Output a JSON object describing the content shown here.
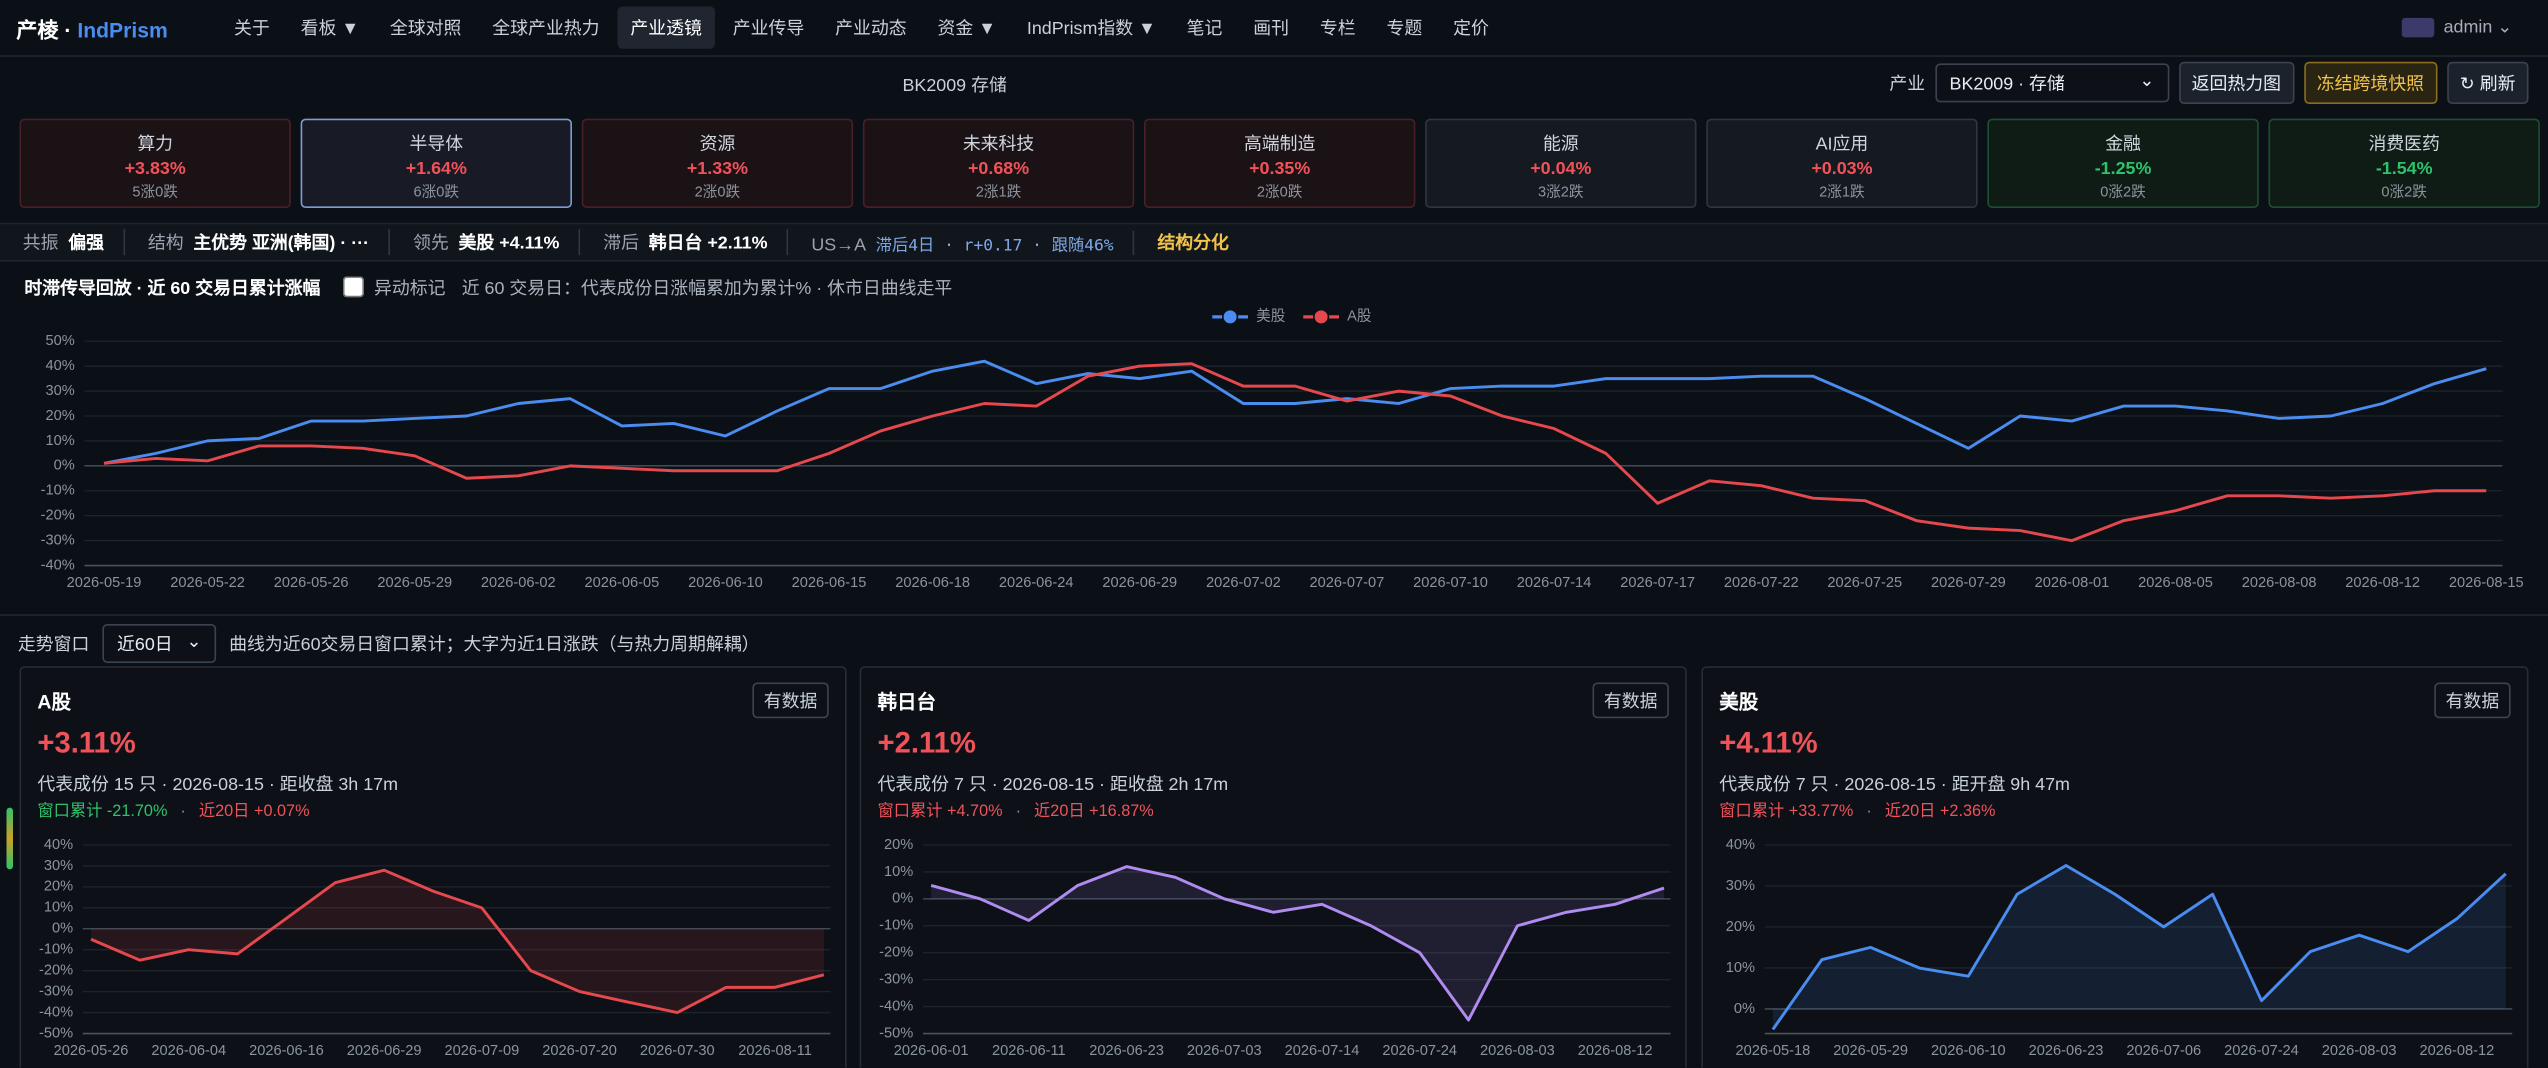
{
  "nav": {
    "brand": "产棱",
    "brand_sep": "·",
    "brand_en": "IndPrism",
    "items": [
      "关于",
      "看板 ▼",
      "全球对照",
      "全球产业热力",
      "产业透镜",
      "产业传导",
      "产业动态",
      "资金 ▼",
      "IndPrism指数 ▼",
      "笔记",
      "画刊",
      "专栏",
      "专题",
      "定价"
    ],
    "user": "admin"
  },
  "header": {
    "title": "BK2009 存储",
    "industry_label": "产业",
    "industry_select": "BK2009 · 存储",
    "buttons": [
      "返回热力图",
      "冻结跨境快照",
      "↻ 刷新"
    ]
  },
  "sectors": [
    {
      "name": "算力",
      "change": "+3.83%",
      "counts": "5涨0跌"
    },
    {
      "name": "半导体",
      "change": "+1.64%",
      "counts": "6涨0跌"
    },
    {
      "name": "资源",
      "change": "+1.33%",
      "counts": "2涨0跌"
    },
    {
      "name": "未来科技",
      "change": "+0.68%",
      "counts": "2涨1跌"
    },
    {
      "name": "高端制造",
      "change": "+0.35%",
      "counts": "2涨0跌"
    },
    {
      "name": "能源",
      "change": "+0.04%",
      "counts": "3涨2跌"
    },
    {
      "name": "AI应用",
      "change": "+0.03%",
      "counts": "2涨1跌"
    },
    {
      "name": "金融",
      "change": "-1.25%",
      "counts": "0涨2跌"
    },
    {
      "name": "消费医药",
      "change": "-1.54%",
      "counts": "0涨2跌"
    }
  ],
  "status": {
    "items": [
      {
        "label": "共振",
        "value": "偏强"
      },
      {
        "label": "结构",
        "value": "主优势 亚洲(韩国) · ···"
      },
      {
        "label": "领先",
        "value": "美股 +4.11%"
      },
      {
        "label": "滞后",
        "value": "韩日台 +2.11%"
      },
      {
        "label": "US→A",
        "value": "滞后4日 · r+0.17 · 跟随46%"
      }
    ],
    "tag": "结构分化"
  },
  "replay": {
    "toggle": "异动标记",
    "note": "近 60 交易日：代表成份日涨幅累加为累计% · 休市日曲线走平"
  },
  "window": {
    "label": "走势窗口",
    "select": "近60日",
    "note": "曲线为近60交易日窗口累计；大字为近1日涨跌（与热力周期解耦）"
  },
  "panels": [
    {
      "title": "A股",
      "badge": "有数据",
      "change": "+3.11%",
      "info": "代表成份 15 只 · 2026-08-15 · 距收盘 3h 17m",
      "window_label": "窗口累计",
      "window_value": "-21.70%",
      "recent_label": "近20日",
      "recent_value": "+0.07%"
    },
    {
      "title": "韩日台",
      "badge": "有数据",
      "change": "+2.11%",
      "info": "代表成份 7 只 · 2026-08-15 · 距收盘 2h 17m",
      "window_label": "窗口累计",
      "window_value": "+4.70%",
      "recent_label": "近20日",
      "recent_value": "+16.87%"
    },
    {
      "title": "美股",
      "badge": "有数据",
      "change": "+4.11%",
      "info": "代表成份 7 只 · 2026-08-15 · 距开盘 9h 47m",
      "window_label": "窗口累计",
      "window_value": "+33.77%",
      "recent_label": "近20日",
      "recent_value": "+2.36%"
    }
  ],
  "chart_data": [
    {
      "type": "line",
      "title": "时滞传导回放 · 近 60 交易日累计涨幅",
      "legend": "top",
      "grid": true,
      "categories": [
        "2026-05-19",
        null,
        "2026-05-22",
        null,
        "2026-05-26",
        null,
        "2026-05-29",
        null,
        "2026-06-02",
        null,
        "2026-06-05",
        null,
        "2026-06-10",
        null,
        "2026-06-15",
        null,
        "2026-06-18",
        null,
        "2026-06-24",
        null,
        "2026-06-29",
        null,
        "2026-07-02",
        null,
        "2026-07-07",
        null,
        "2026-07-10",
        null,
        "2026-07-14",
        null,
        "2026-07-17",
        null,
        "2026-07-22",
        null,
        "2026-07-25",
        null,
        "2026-07-29",
        null,
        "2026-08-01",
        null,
        "2026-08-05",
        null,
        "2026-08-08",
        null,
        "2026-08-12",
        null,
        "2026-08-15"
      ],
      "series": [
        {
          "name": "美股",
          "color": "#4a8cf0",
          "values": [
            1,
            5,
            10,
            11,
            18,
            18,
            19,
            20,
            25,
            27,
            16,
            17,
            12,
            22,
            31,
            31,
            38,
            42,
            33,
            37,
            35,
            38,
            25,
            25,
            27,
            25,
            31,
            32,
            32,
            35,
            35,
            35,
            36,
            36,
            27,
            17,
            7,
            20,
            18,
            24,
            24,
            22,
            19,
            20,
            25,
            33,
            39
          ]
        },
        {
          "name": "A股",
          "color": "#e5484d",
          "values": [
            1,
            3,
            2,
            8,
            8,
            7,
            4,
            -5,
            -4,
            0,
            -1,
            -2,
            -2,
            -2,
            5,
            14,
            20,
            25,
            24,
            36,
            40,
            41,
            32,
            32,
            26,
            30,
            28,
            20,
            15,
            5,
            -15,
            -6,
            -8,
            -13,
            -14,
            -22,
            -25,
            -26,
            -30,
            -22,
            -18,
            -12,
            -12,
            -13,
            -12,
            -10,
            -10
          ]
        }
      ],
      "ylim": [
        -40,
        50
      ],
      "yticks": [
        {
          "value": 50,
          "label": "50%"
        },
        {
          "value": 40,
          "label": "40%"
        },
        {
          "value": 30,
          "label": "30%"
        },
        {
          "value": 20,
          "label": "20%"
        },
        {
          "value": 10,
          "label": "10%"
        },
        {
          "value": 0,
          "label": "0%"
        },
        {
          "value": -10,
          "label": "-10%"
        },
        {
          "value": -20,
          "label": "-20%"
        },
        {
          "value": -30,
          "label": "-30%"
        },
        {
          "value": -40,
          "label": "-40%"
        }
      ]
    },
    {
      "type": "line",
      "area": true,
      "grid": true,
      "color": "#e5484d",
      "categories": [
        "2026-05-26",
        null,
        "2026-06-04",
        null,
        "2026-06-16",
        null,
        "2026-06-29",
        null,
        "2026-07-09",
        null,
        "2026-07-20",
        null,
        "2026-07-30",
        null,
        "2026-08-11",
        null
      ],
      "values": [
        -5,
        -15,
        -10,
        -12,
        5,
        22,
        28,
        18,
        10,
        -20,
        -30,
        -35,
        -40,
        -28,
        -28,
        -22
      ],
      "ylim": [
        -50,
        40
      ],
      "yticks": [
        {
          "value": 40,
          "label": "40%"
        },
        {
          "value": 30,
          "label": "30%"
        },
        {
          "value": 20,
          "label": "20%"
        },
        {
          "value": 10,
          "label": "10%"
        },
        {
          "value": 0,
          "label": "0%"
        },
        {
          "value": -10,
          "label": "-10%"
        },
        {
          "value": -20,
          "label": "-20%"
        },
        {
          "value": -30,
          "label": "-30%"
        },
        {
          "value": -40,
          "label": "-40%"
        },
        {
          "value": -50,
          "label": "-50%"
        }
      ]
    },
    {
      "type": "line",
      "area": true,
      "grid": true,
      "color": "#b08cf0",
      "categories": [
        "2026-06-01",
        null,
        "2026-06-11",
        null,
        "2026-06-23",
        null,
        "2026-07-03",
        null,
        "2026-07-14",
        null,
        "2026-07-24",
        null,
        "2026-08-03",
        null,
        "2026-08-12",
        null
      ],
      "values": [
        5,
        0,
        -8,
        5,
        12,
        8,
        0,
        -5,
        -2,
        -10,
        -20,
        -45,
        -10,
        -5,
        -2,
        4
      ],
      "ylim": [
        -50,
        20
      ],
      "yticks": [
        {
          "value": 20,
          "label": "20%"
        },
        {
          "value": 10,
          "label": "10%"
        },
        {
          "value": 0,
          "label": "0%"
        },
        {
          "value": -10,
          "label": "-10%"
        },
        {
          "value": -20,
          "label": "-20%"
        },
        {
          "value": -30,
          "label": "-30%"
        },
        {
          "value": -40,
          "label": "-40%"
        },
        {
          "value": -50,
          "label": "-50%"
        }
      ]
    },
    {
      "type": "line",
      "area": true,
      "grid": true,
      "color": "#4a8cf0",
      "categories": [
        "2026-05-18",
        null,
        "2026-05-29",
        null,
        "2026-06-10",
        null,
        "2026-06-23",
        null,
        "2026-07-06",
        null,
        "2026-07-24",
        null,
        "2026-08-03",
        null,
        "2026-08-12",
        null
      ],
      "values": [
        -5,
        12,
        15,
        10,
        8,
        28,
        35,
        28,
        20,
        28,
        2,
        14,
        18,
        14,
        22,
        33
      ],
      "ylim": [
        -6,
        40
      ],
      "yticks": [
        {
          "value": 40,
          "label": "40%"
        },
        {
          "value": 30,
          "label": "30%"
        },
        {
          "value": 20,
          "label": "20%"
        },
        {
          "value": 10,
          "label": "10%"
        },
        {
          "value": 0,
          "label": "0%"
        }
      ]
    }
  ]
}
